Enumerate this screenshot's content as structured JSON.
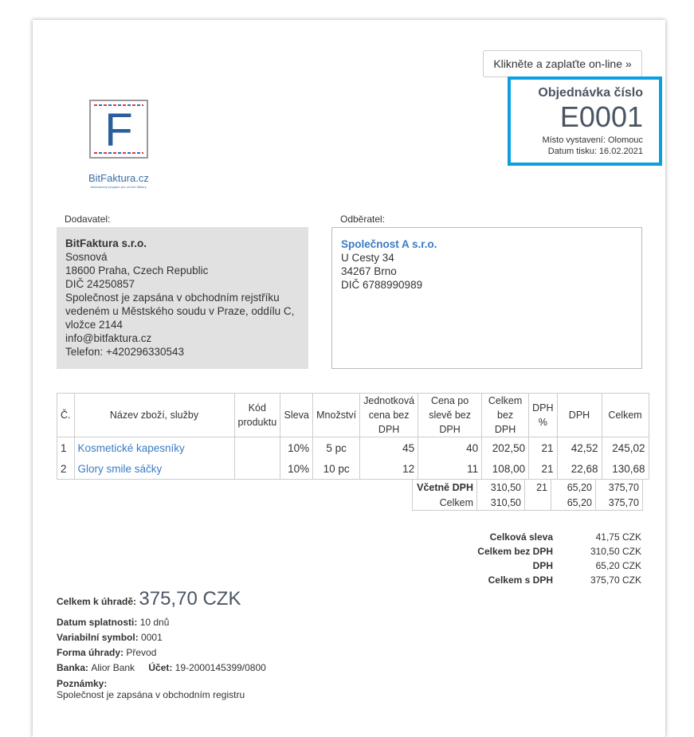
{
  "pay_online_button": "Klikněte a zaplaťte on-line »",
  "order": {
    "title": "Objednávka číslo",
    "number": "E0001",
    "place": "Místo vystavení: Olomouc",
    "print_date": "Datum tisku: 16.02.2021"
  },
  "logo": {
    "letter": "F",
    "name": "BitFaktura.cz",
    "tagline": "Jednoduchý program pro on-line faktury"
  },
  "supplier": {
    "label": "Dodavatel:",
    "name": "BitFaktura s.r.o.",
    "lines": [
      "Sosnová",
      "18600 Praha, Czech Republic",
      "DIČ 24250857",
      "Společnost je zapsána v obchodním rejstříku vedeném u Městského soudu v Praze, oddílu C, vložce 2144",
      "info@bitfaktura.cz",
      "Telefon: +420296330543"
    ]
  },
  "customer": {
    "label": "Odběratel:",
    "name": "Společnost A s.r.o.",
    "lines": [
      "U Cesty 34",
      "34267 Brno",
      "DIČ 6788990989"
    ]
  },
  "table": {
    "headers": [
      "Č.",
      "Název zboží, služby",
      "Kód produktu",
      "Sleva",
      "Množství",
      "Jednotková cena bez DPH",
      "Cena po slevě bez DPH",
      "Celkem bez DPH",
      "DPH %",
      "DPH",
      "Celkem"
    ],
    "rows": [
      [
        "1",
        "Kosmetické kapesníky",
        "",
        "10%",
        "5 pc",
        "45",
        "40",
        "202,50",
        "21",
        "42,52",
        "245,02"
      ],
      [
        "2",
        "Glory smile sáčky",
        "",
        "10%",
        "10 pc",
        "12",
        "11",
        "108,00",
        "21",
        "22,68",
        "130,68"
      ]
    ],
    "vat_row": [
      "Včetně DPH",
      "310,50",
      "21",
      "65,20",
      "375,70"
    ],
    "total_row": [
      "Celkem",
      "310,50",
      "",
      "65,20",
      "375,70"
    ]
  },
  "totals": [
    [
      "Celková sleva",
      "41,75 CZK"
    ],
    [
      "Celkem bez DPH",
      "310,50 CZK"
    ],
    [
      "DPH",
      "65,20 CZK"
    ],
    [
      "Celkem s DPH",
      "375,70 CZK"
    ]
  ],
  "payment": {
    "due_label": "Celkem k úhradě:",
    "due_value": "375,70 CZK",
    "date_label": "Datum splatnosti:",
    "date_value": "10 dnů",
    "vs_label": "Variabilní symbol:",
    "vs_value": "0001",
    "method_label": "Forma úhrady:",
    "method_value": "Převod",
    "bank_label": "Banka:",
    "bank_value": "Alior Bank",
    "account_label": "Účet:",
    "account_value": "19-2000145399/0800",
    "notes_label": "Poznámky:",
    "notes_value": "Společnost je zapsána v obchodním registru"
  }
}
